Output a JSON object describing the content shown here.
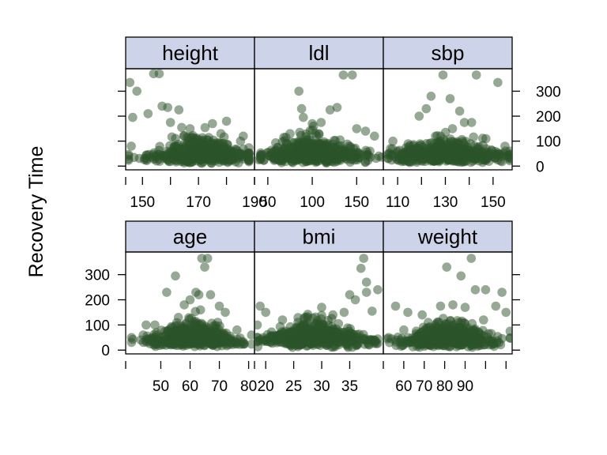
{
  "chart_data": {
    "type": "scatter",
    "ylabel": "Recovery Time",
    "ylim": [
      -15,
      390
    ],
    "y_ticks": [
      0,
      100,
      200,
      300
    ],
    "y_tick_labels": [
      "0",
      "100",
      "200",
      "300"
    ],
    "colors": {
      "point": "#2b5329",
      "strip": "#cdd3e8",
      "frame": "#000000"
    },
    "panels": [
      {
        "name": "height",
        "xlim": [
          144,
          190
        ],
        "x_ticks": [
          150,
          160,
          170,
          180,
          190
        ],
        "x_tick_labels": [
          "150",
          "",
          "170",
          "",
          "190"
        ],
        "points": [
          [
            145.5,
            335
          ],
          [
            146.5,
            195
          ],
          [
            148,
            300
          ],
          [
            146,
            80
          ],
          [
            154,
            370
          ],
          [
            156,
            370
          ],
          [
            157,
            240
          ],
          [
            159,
            235
          ],
          [
            163,
            225
          ],
          [
            160,
            175
          ],
          [
            164,
            155
          ],
          [
            175,
            170
          ],
          [
            180,
            180
          ],
          [
            167,
            150
          ],
          [
            186,
            120
          ],
          [
            178,
            130
          ],
          [
            152,
            210
          ],
          [
            185,
            100
          ],
          [
            171,
            45
          ],
          [
            169,
            60
          ]
        ],
        "cloud": {
          "mean": 170,
          "sd": 9,
          "min": 145,
          "max": 188
        }
      },
      {
        "name": "ldl",
        "xlim": [
          35,
          180
        ],
        "x_ticks": [
          50,
          100,
          150
        ],
        "x_tick_labels": [
          "50",
          "100",
          "150"
        ],
        "points": [
          [
            40,
            25
          ],
          [
            85,
            300
          ],
          [
            88,
            230
          ],
          [
            90,
            195
          ],
          [
            120,
            225
          ],
          [
            128,
            235
          ],
          [
            135,
            365
          ],
          [
            145,
            365
          ],
          [
            60,
            60
          ],
          [
            150,
            150
          ],
          [
            160,
            140
          ],
          [
            170,
            120
          ],
          [
            110,
            175
          ],
          [
            100,
            170
          ],
          [
            75,
            130
          ],
          [
            165,
            60
          ],
          [
            68,
            115
          ],
          [
            175,
            40
          ],
          [
            105,
            120
          ],
          [
            100,
            45
          ]
        ],
        "cloud": {
          "mean": 102,
          "sd": 28,
          "min": 42,
          "max": 178
        }
      },
      {
        "name": "sbp",
        "xlim": [
          104,
          158
        ],
        "x_ticks": [
          110,
          120,
          130,
          140,
          150
        ],
        "x_tick_labels": [
          "110",
          "",
          "130",
          "",
          "150"
        ],
        "points": [
          [
            108,
            100
          ],
          [
            107,
            70
          ],
          [
            119,
            200
          ],
          [
            122,
            230
          ],
          [
            124,
            280
          ],
          [
            129,
            365
          ],
          [
            132,
            270
          ],
          [
            136,
            220
          ],
          [
            138,
            175
          ],
          [
            141,
            175
          ],
          [
            143,
            365
          ],
          [
            152,
            335
          ],
          [
            133,
            150
          ],
          [
            128,
            120
          ],
          [
            147,
            110
          ],
          [
            155,
            80
          ],
          [
            157,
            60
          ],
          [
            110,
            60
          ],
          [
            135,
            90
          ],
          [
            130,
            40
          ]
        ],
        "cloud": {
          "mean": 131,
          "sd": 11,
          "min": 106,
          "max": 157
        }
      },
      {
        "name": "age",
        "xlim": [
          38,
          82
        ],
        "x_ticks": [
          50,
          60,
          70,
          80
        ],
        "x_tick_labels": [
          "50",
          "60",
          "70",
          "80"
        ],
        "points": [
          [
            40,
            50
          ],
          [
            45,
            100
          ],
          [
            52,
            230
          ],
          [
            55,
            295
          ],
          [
            58,
            180
          ],
          [
            60,
            200
          ],
          [
            62,
            230
          ],
          [
            63,
            220
          ],
          [
            64,
            365
          ],
          [
            65,
            330
          ],
          [
            66,
            365
          ],
          [
            67,
            220
          ],
          [
            70,
            175
          ],
          [
            72,
            150
          ],
          [
            76,
            80
          ],
          [
            81,
            60
          ],
          [
            48,
            100
          ],
          [
            56,
            130
          ],
          [
            44,
            60
          ],
          [
            61,
            45
          ]
        ],
        "cloud": {
          "mean": 61,
          "sd": 7,
          "min": 40,
          "max": 81
        }
      },
      {
        "name": "bmi",
        "xlim": [
          18,
          41
        ],
        "x_ticks": [
          20,
          25,
          30,
          35
        ],
        "x_tick_labels": [
          "20",
          "25",
          "30",
          "35"
        ],
        "points": [
          [
            18.5,
            100
          ],
          [
            19,
            175
          ],
          [
            20,
            150
          ],
          [
            23,
            120
          ],
          [
            27,
            130
          ],
          [
            30,
            170
          ],
          [
            32,
            140
          ],
          [
            34,
            150
          ],
          [
            35,
            220
          ],
          [
            36,
            200
          ],
          [
            37,
            325
          ],
          [
            37.5,
            365
          ],
          [
            38,
            230
          ],
          [
            39,
            155
          ],
          [
            40,
            240
          ],
          [
            38,
            270
          ],
          [
            33,
            105
          ],
          [
            26,
            60
          ],
          [
            31,
            80
          ],
          [
            29,
            40
          ]
        ],
        "cloud": {
          "mean": 29,
          "sd": 4.5,
          "min": 18.5,
          "max": 40
        }
      },
      {
        "name": "weight",
        "xlim": [
          50,
          113
        ],
        "x_ticks": [
          60,
          70,
          80,
          90,
          100,
          110
        ],
        "x_tick_labels": [
          "60",
          "70",
          "80",
          "90",
          "",
          ""
        ],
        "points": [
          [
            53,
            30
          ],
          [
            56,
            175
          ],
          [
            62,
            150
          ],
          [
            69,
            140
          ],
          [
            78,
            175
          ],
          [
            81,
            330
          ],
          [
            88,
            295
          ],
          [
            84,
            180
          ],
          [
            90,
            170
          ],
          [
            93,
            365
          ],
          [
            95,
            240
          ],
          [
            100,
            240
          ],
          [
            108,
            230
          ],
          [
            110,
            150
          ],
          [
            105,
            175
          ],
          [
            72,
            110
          ],
          [
            99,
            120
          ],
          [
            60,
            80
          ],
          [
            112,
            75
          ],
          [
            86,
            45
          ]
        ],
        "cloud": {
          "mean": 82,
          "sd": 11,
          "min": 52,
          "max": 112
        }
      }
    ]
  }
}
